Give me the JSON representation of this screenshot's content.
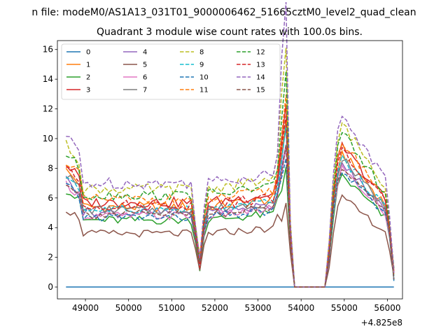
{
  "figure": {
    "suptitle": "n file: modeM0/AS1A13_031T01_9000006462_51665cztM0_level2_quad_clean",
    "title": "Quadrant 3 module wise count rates with 100.0s bins.",
    "x_offset_label": "+4.825e8"
  },
  "chart_data": {
    "type": "line",
    "title": "Quadrant 3 module wise count rates with 100.0s bins.",
    "xlabel": "",
    "ylabel": "",
    "x_offset": 482500000,
    "xlim": [
      48350,
      56350
    ],
    "ylim": [
      -0.8,
      16.6
    ],
    "x_ticks": [
      49000,
      50000,
      51000,
      52000,
      53000,
      54000,
      55000,
      56000
    ],
    "x_tick_labels": [
      "49000",
      "50000",
      "51000",
      "52000",
      "53000",
      "54000",
      "55000",
      "56000"
    ],
    "y_ticks": [
      0,
      2,
      4,
      6,
      8,
      10,
      12,
      14,
      16
    ],
    "y_tick_labels": [
      "0",
      "2",
      "4",
      "6",
      "8",
      "10",
      "12",
      "14",
      "16"
    ],
    "grid": false,
    "legend": {
      "placement": "top-left",
      "columns": 4
    },
    "x_segments": [
      {
        "start": 48550,
        "end": 56150,
        "step": 100
      }
    ],
    "series": [
      {
        "name": "0",
        "color": "#1f77b4",
        "dash": "solid",
        "level": 0,
        "scale": 0,
        "amp": 0,
        "seed": 0
      },
      {
        "name": "1",
        "color": "#ff7f0e",
        "dash": "solid",
        "level": 5.4,
        "scale": 0.98,
        "amp": 0.35,
        "seed": 1
      },
      {
        "name": "2",
        "color": "#2ca02c",
        "dash": "solid",
        "level": 4.5,
        "scale": 0.84,
        "amp": 0.3,
        "seed": 2
      },
      {
        "name": "3",
        "color": "#d62728",
        "dash": "solid",
        "level": 5.7,
        "scale": 1.0,
        "amp": 0.35,
        "seed": 3
      },
      {
        "name": "4",
        "color": "#9467bd",
        "dash": "solid",
        "level": 5.0,
        "scale": 0.92,
        "amp": 0.35,
        "seed": 4
      },
      {
        "name": "5",
        "color": "#8c564b",
        "dash": "solid",
        "level": 3.6,
        "scale": 0.72,
        "amp": 0.25,
        "seed": 5
      },
      {
        "name": "6",
        "color": "#e377c2",
        "dash": "solid",
        "level": 4.8,
        "scale": 0.9,
        "amp": 0.3,
        "seed": 6
      },
      {
        "name": "7",
        "color": "#7f7f7f",
        "dash": "solid",
        "level": 5.2,
        "scale": 0.95,
        "amp": 0.3,
        "seed": 7
      },
      {
        "name": "8",
        "color": "#bcbd22",
        "dash": "dashed",
        "level": 6.6,
        "scale": 1.12,
        "amp": 0.35,
        "seed": 8
      },
      {
        "name": "9",
        "color": "#17becf",
        "dash": "dashed",
        "level": 5.2,
        "scale": 0.96,
        "amp": 0.3,
        "seed": 9
      },
      {
        "name": "10",
        "color": "#1f77b4",
        "dash": "dashed",
        "level": 4.7,
        "scale": 0.88,
        "amp": 0.3,
        "seed": 10
      },
      {
        "name": "11",
        "color": "#ff7f0e",
        "dash": "dashed",
        "level": 5.9,
        "scale": 1.02,
        "amp": 0.35,
        "seed": 11
      },
      {
        "name": "12",
        "color": "#2ca02c",
        "dash": "dashed",
        "level": 6.2,
        "scale": 1.08,
        "amp": 0.35,
        "seed": 12
      },
      {
        "name": "13",
        "color": "#d62728",
        "dash": "dashed",
        "level": 5.5,
        "scale": 1.0,
        "amp": 0.35,
        "seed": 13
      },
      {
        "name": "14",
        "color": "#9467bd",
        "dash": "dashed",
        "level": 7.0,
        "scale": 1.25,
        "amp": 0.4,
        "seed": 14
      },
      {
        "name": "15",
        "color": "#8c564b",
        "dash": "dashed",
        "level": 4.9,
        "scale": 0.9,
        "amp": 0.3,
        "seed": 15
      }
    ]
  }
}
